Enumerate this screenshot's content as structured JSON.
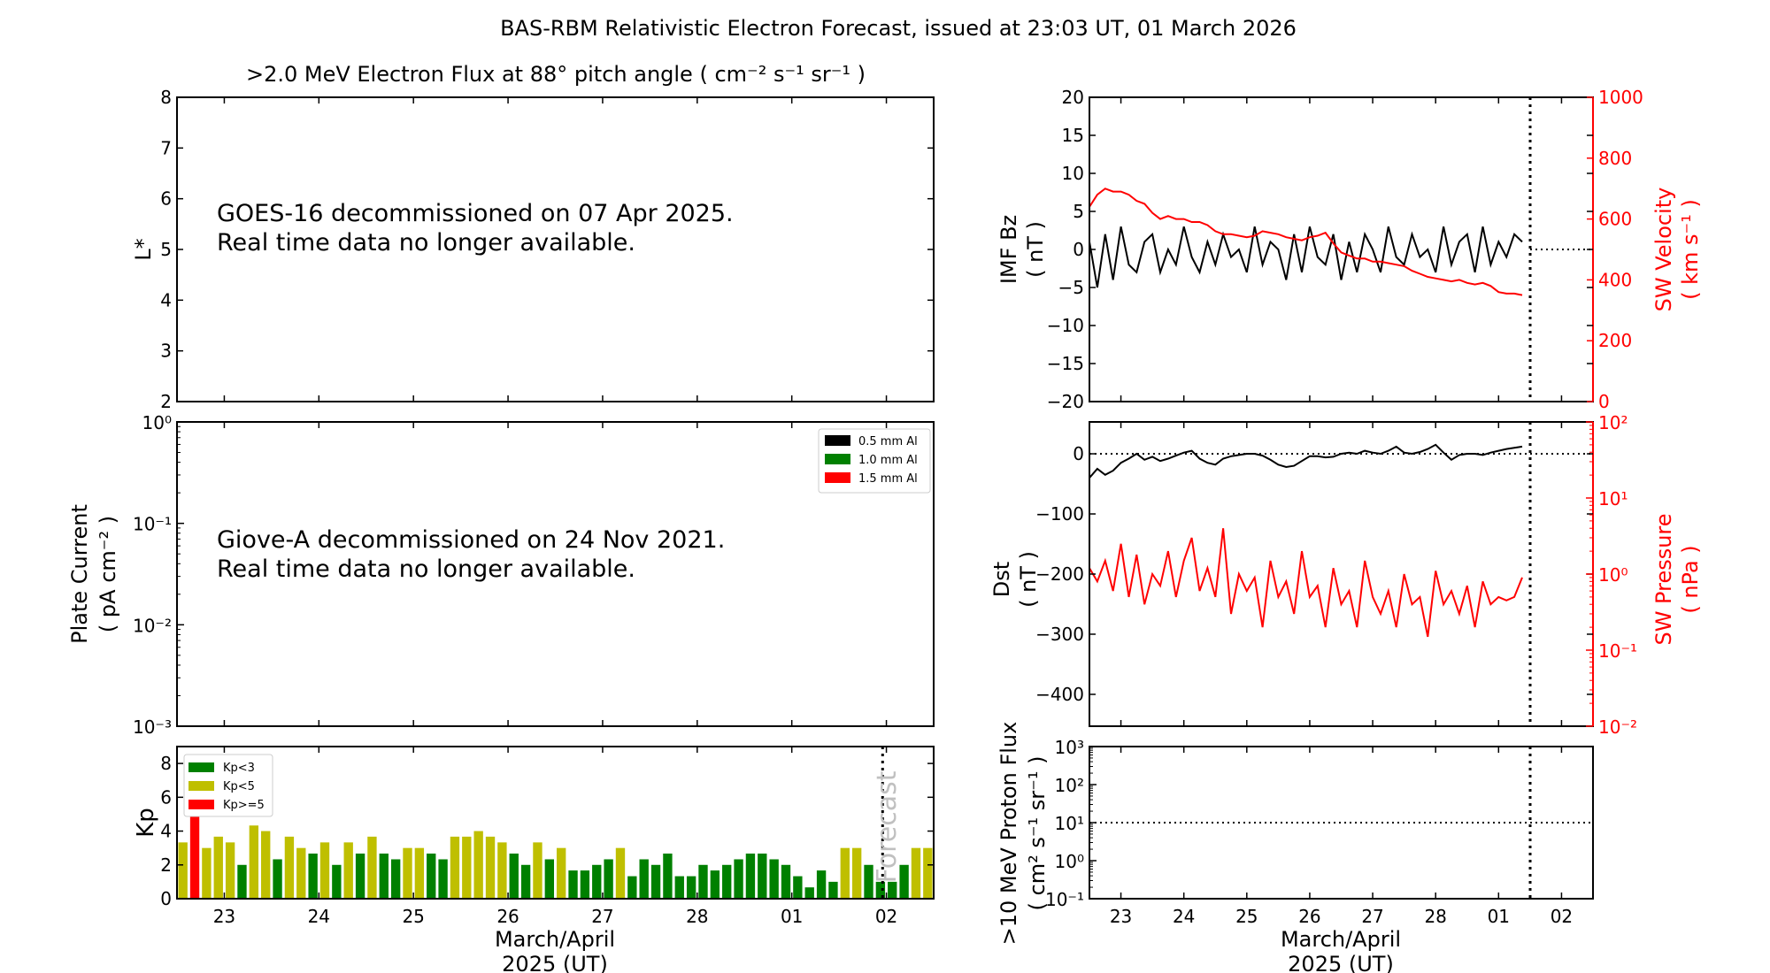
{
  "title": "BAS-RBM Relativistic Electron Forecast, issued at 23:03 UT, 01 March 2026",
  "colors": {
    "kp_low": "#008000",
    "kp_mid": "#bfbf00",
    "kp_high": "#ff0000",
    "red_axis": "#ff0000",
    "black": "#000000",
    "forecast_text": "#c0c0c0"
  },
  "x_axis": {
    "label_line1": "March/April",
    "label_line2": "2025 (UT)",
    "ticks": [
      "23",
      "24",
      "25",
      "26",
      "27",
      "28",
      "01",
      "02"
    ],
    "range_days": [
      -0.5,
      7.5
    ],
    "forecast_line_day": 6.96
  },
  "chart_data": [
    {
      "id": "electron_flux",
      "type": "heatmap",
      "title": ">2.0 MeV Electron Flux at 88° pitch angle ( cm⁻² s⁻¹ sr⁻¹ )",
      "ylabel": "L*",
      "ylim": [
        2,
        8
      ],
      "yticks": [
        "2",
        "3",
        "4",
        "5",
        "6",
        "7",
        "8"
      ],
      "annotation_line1": "GOES-16 decommissioned on 07 Apr 2025.",
      "annotation_line2": "Real time data no longer available."
    },
    {
      "id": "plate_current",
      "type": "line",
      "ylabel_line1": "Plate Current",
      "ylabel_line2": "( pA cm⁻² )",
      "yscale": "log",
      "ylim": [
        0.001,
        1
      ],
      "yticks": [
        "10⁻³",
        "10⁻²",
        "10⁻¹",
        "10⁰"
      ],
      "legend": [
        "0.5 mm Al",
        "1.0 mm Al",
        "1.5 mm Al"
      ],
      "legend_colors": [
        "#000000",
        "#008000",
        "#ff0000"
      ],
      "legend_placement": "top-right",
      "annotation_line1": "Giove-A decommissioned on 24 Nov 2021.",
      "annotation_line2": "Real time data no longer available."
    },
    {
      "id": "kp",
      "type": "bar",
      "ylabel": "Kp",
      "ylim": [
        0,
        9
      ],
      "yticks": [
        "0",
        "2",
        "4",
        "6",
        "8"
      ],
      "legend": [
        "Kp<3",
        "Kp<5",
        "Kp>=5"
      ],
      "legend_placement": "top-left",
      "forecast_label": "Forecast",
      "bin_hours": 3,
      "start_day": -0.5,
      "observed": [
        3.33,
        5,
        3,
        3.67,
        3.33,
        2,
        4.33,
        4,
        2.33,
        3.67,
        3,
        2.67,
        3.33,
        2,
        3.33,
        2.67,
        3.67,
        2.67,
        2.33,
        3,
        3,
        2.67,
        2.33,
        3.67,
        3.67,
        4,
        3.67,
        3.33,
        2.67,
        2,
        3.33,
        2.33,
        3,
        1.67,
        1.67,
        2,
        2.33,
        3,
        1.33,
        2.33,
        2,
        2.67,
        1.33,
        1.33,
        2,
        1.67,
        2,
        2.33,
        2.67,
        2.67,
        2.33,
        2,
        1.33,
        0.67,
        1.67,
        1
      ],
      "forecast": [
        3,
        3,
        2,
        1,
        1,
        2,
        3,
        3
      ]
    },
    {
      "id": "imf_sw_velocity",
      "type": "line",
      "ylabel_line1": "IMF Bz",
      "ylabel_line2": "( nT )",
      "ylim": [
        -20,
        20
      ],
      "yticks": [
        "−20",
        "−15",
        "−10",
        "−5",
        "0",
        "5",
        "10",
        "15",
        "20"
      ],
      "ylabel2_line1": "SW Velocity",
      "ylabel2_line2": "( km s⁻¹ )",
      "ylim2": [
        0,
        1000
      ],
      "yticks2": [
        "0",
        "200",
        "400",
        "600",
        "800",
        "1000"
      ],
      "sample_hours": 3,
      "start_day": -0.5,
      "series": [
        {
          "name": "IMF Bz",
          "color": "#000000",
          "values": [
            1,
            -5,
            2,
            -4,
            3,
            -2,
            -3,
            1,
            2,
            -3,
            0,
            -2,
            3,
            -1,
            -3,
            1,
            -2,
            2,
            -1,
            0,
            -3,
            3,
            -2,
            1,
            0,
            -4,
            2,
            -3,
            3,
            -1,
            -2,
            2,
            -4,
            1,
            -3,
            2,
            0,
            -3,
            3,
            -1,
            -2,
            2,
            -1,
            0,
            -3,
            3,
            -2,
            1,
            2,
            -3,
            3,
            -2,
            1,
            -1,
            2,
            1
          ]
        },
        {
          "name": "SW Velocity",
          "color": "#ff0000",
          "values": [
            640,
            680,
            700,
            690,
            690,
            680,
            660,
            650,
            620,
            600,
            610,
            600,
            600,
            590,
            590,
            580,
            560,
            550,
            550,
            545,
            540,
            545,
            560,
            555,
            550,
            540,
            535,
            530,
            540,
            545,
            555,
            520,
            490,
            480,
            470,
            470,
            460,
            460,
            455,
            450,
            445,
            430,
            420,
            410,
            405,
            400,
            395,
            400,
            390,
            385,
            390,
            380,
            360,
            355,
            355,
            350
          ]
        }
      ]
    },
    {
      "id": "dst_sw_pressure",
      "type": "line",
      "ylabel_line1": "Dst",
      "ylabel_line2": "( nT )",
      "ylim": [
        -453,
        53
      ],
      "yticks": [
        "−400",
        "−300",
        "−200",
        "−100",
        "0"
      ],
      "ylabel2_line1": "SW Pressure",
      "ylabel2_line2": "( nPa )",
      "y2scale": "log",
      "ylim2": [
        0.01,
        100
      ],
      "yticks2": [
        "10⁻²",
        "10⁻¹",
        "10⁰",
        "10¹",
        "10²"
      ],
      "sample_hours": 3,
      "start_day": -0.5,
      "series": [
        {
          "name": "Dst",
          "color": "#000000",
          "values": [
            -40,
            -25,
            -35,
            -28,
            -15,
            -8,
            0,
            -10,
            -5,
            -12,
            -8,
            -3,
            2,
            5,
            -8,
            -15,
            -18,
            -8,
            -4,
            -2,
            0,
            0,
            -3,
            -10,
            -18,
            -22,
            -20,
            -12,
            -4,
            -4,
            -6,
            -5,
            0,
            2,
            0,
            5,
            2,
            0,
            5,
            12,
            2,
            0,
            3,
            8,
            15,
            2,
            -10,
            -2,
            0,
            0,
            -2,
            2,
            5,
            8,
            10,
            12
          ]
        },
        {
          "name": "SW Pressure",
          "color": "#ff0000",
          "values": [
            1.2,
            0.8,
            1.5,
            0.6,
            2.5,
            0.5,
            1.8,
            0.4,
            1.0,
            0.7,
            2.0,
            0.5,
            1.5,
            3.0,
            0.6,
            1.2,
            0.5,
            4.0,
            0.3,
            1.0,
            0.6,
            0.9,
            0.2,
            1.5,
            0.5,
            0.8,
            0.3,
            2.0,
            0.5,
            0.7,
            0.2,
            1.2,
            0.4,
            0.6,
            0.2,
            1.5,
            0.5,
            0.3,
            0.6,
            0.2,
            1.0,
            0.4,
            0.5,
            0.15,
            1.1,
            0.4,
            0.6,
            0.3,
            0.7,
            0.2,
            0.8,
            0.4,
            0.5,
            0.45,
            0.5,
            0.9
          ]
        }
      ]
    },
    {
      "id": "proton_flux",
      "type": "line",
      "ylabel_line1": ">10 MeV Proton Flux",
      "ylabel_line2": "( cm² s⁻¹ sr⁻¹ )",
      "yscale": "log",
      "ylim": [
        0.1,
        1000
      ],
      "yticks": [
        "10⁻¹",
        "10⁰",
        "10¹",
        "10²",
        "10³"
      ],
      "threshold": 10
    }
  ]
}
